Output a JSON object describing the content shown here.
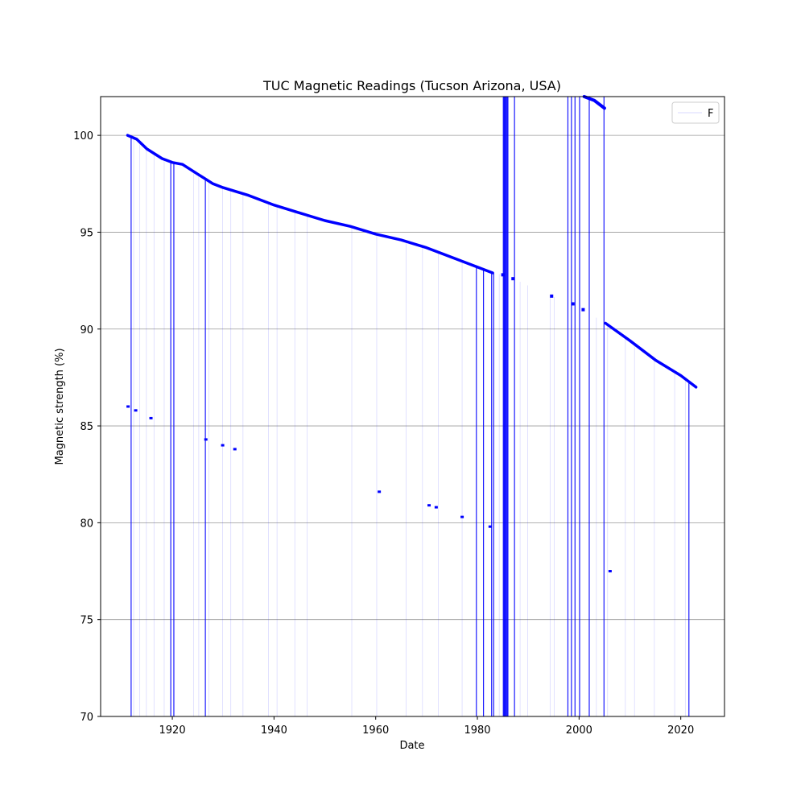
{
  "chart_data": {
    "type": "line",
    "title": "TUC Magnetic Readings (Tucson Arizona, USA)",
    "xlabel": "Date",
    "ylabel": "Magnetic strength (%)",
    "xlim": [
      1905.9,
      2028.6
    ],
    "ylim": [
      70,
      102
    ],
    "xticks": [
      1920,
      1940,
      1960,
      1980,
      2000,
      2020
    ],
    "yticks": [
      70,
      75,
      80,
      85,
      90,
      95,
      100
    ],
    "grid": "horizontal",
    "legend": {
      "placement": "top-right",
      "entries": [
        "F"
      ]
    },
    "series": [
      {
        "name": "F",
        "color": "#0000ff",
        "trend": [
          [
            1911.2,
            100.0
          ],
          [
            1913.0,
            99.8
          ],
          [
            1915.0,
            99.3
          ],
          [
            1918.0,
            98.8
          ],
          [
            1920.0,
            98.6
          ],
          [
            1922.0,
            98.5
          ],
          [
            1925.0,
            98.0
          ],
          [
            1928.0,
            97.5
          ],
          [
            1930.0,
            97.3
          ],
          [
            1935.0,
            96.9
          ],
          [
            1940.0,
            96.4
          ],
          [
            1945.0,
            96.0
          ],
          [
            1950.0,
            95.6
          ],
          [
            1955.0,
            95.3
          ],
          [
            1960.0,
            94.9
          ],
          [
            1965.0,
            94.6
          ],
          [
            1970.0,
            94.2
          ],
          [
            1975.0,
            93.7
          ],
          [
            1980.0,
            93.2
          ],
          [
            1983.0,
            92.9
          ],
          [
            1985.0,
            92.8
          ],
          [
            1987.0,
            92.6
          ],
          [
            1994.6,
            91.7
          ],
          [
            1998.8,
            91.3
          ],
          [
            2000.8,
            91.0
          ],
          [
            2005.2,
            90.3
          ],
          [
            2010.0,
            89.4
          ],
          [
            2015.0,
            88.4
          ],
          [
            2020.0,
            87.6
          ],
          [
            2023.0,
            87.0
          ]
        ],
        "upper_segment": [
          [
            2001.0,
            102.0
          ],
          [
            2003.0,
            101.8
          ],
          [
            2005.0,
            101.4
          ]
        ],
        "low_points": [
          [
            1911.3,
            86.0
          ],
          [
            1912.8,
            85.8
          ],
          [
            1915.8,
            85.4
          ],
          [
            1926.6,
            84.3
          ],
          [
            1929.9,
            84.0
          ],
          [
            1932.3,
            83.8
          ],
          [
            1960.7,
            81.6
          ],
          [
            1970.5,
            80.9
          ],
          [
            1971.9,
            80.8
          ],
          [
            1977.0,
            80.3
          ],
          [
            1982.5,
            79.8
          ],
          [
            2006.1,
            77.5
          ]
        ],
        "drop_lines_strong": [
          1911.9,
          1919.7,
          1920.3,
          1926.5,
          1979.8,
          1981.2,
          1982.8,
          1983.2,
          1985.2,
          1985.5,
          1985.9,
          1987.3,
          1997.8,
          1998.5,
          1999.2,
          2000.1,
          2002.0,
          2004.9,
          2021.6
        ],
        "drop_lines_faint": [
          1912.4,
          1913.6,
          1914.9,
          1916.4,
          1918.4,
          1924.2,
          1925.2,
          1927.2,
          1929.9,
          1931.5,
          1933.9,
          1938.9,
          1940.6,
          1944.1,
          1946.5,
          1955.3,
          1960.2,
          1966.0,
          1969.2,
          1972.3,
          1977.0,
          1984.3,
          1988.4,
          1989.9,
          1994.3,
          1995.1,
          2003.4,
          2005.6,
          2009.1,
          2010.9,
          2014.8,
          2018.8,
          2020.9
        ]
      }
    ]
  }
}
